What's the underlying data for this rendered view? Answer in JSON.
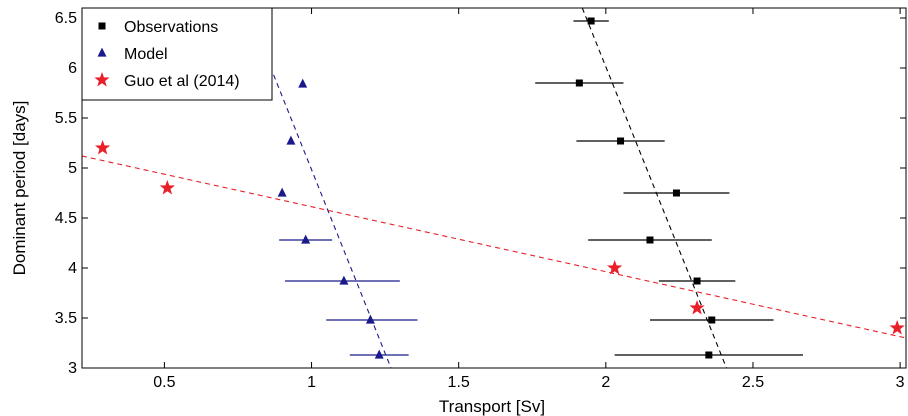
{
  "chart_data": {
    "type": "scatter",
    "xlabel": "Transport [Sv]",
    "ylabel": "Dominant period [days]",
    "xlim": [
      0.22,
      3.02
    ],
    "ylim": [
      3.0,
      6.6
    ],
    "xticks": [
      0.5,
      1,
      1.5,
      2,
      2.5,
      3
    ],
    "xtick_labels": [
      "0.5",
      "1",
      "1.5",
      "2",
      "2.5",
      "3"
    ],
    "yticks": [
      3,
      3.5,
      4,
      4.5,
      5,
      5.5,
      6,
      6.5
    ],
    "ytick_labels": [
      "3",
      "3.5",
      "4",
      "4.5",
      "5",
      "5.5",
      "6",
      "6.5"
    ],
    "grid": false,
    "legend_position": "top-left",
    "series": [
      {
        "name": "Observations",
        "marker": "square",
        "color": "#000000",
        "points": [
          {
            "x": 1.95,
            "y": 6.47,
            "xerr": [
              1.89,
              2.01
            ]
          },
          {
            "x": 1.91,
            "y": 5.85,
            "xerr": [
              1.76,
              2.06
            ]
          },
          {
            "x": 2.05,
            "y": 5.27,
            "xerr": [
              1.9,
              2.2
            ]
          },
          {
            "x": 2.24,
            "y": 4.75,
            "xerr": [
              2.06,
              2.42
            ]
          },
          {
            "x": 2.15,
            "y": 4.28,
            "xerr": [
              1.94,
              2.36
            ]
          },
          {
            "x": 2.31,
            "y": 3.87,
            "xerr": [
              2.18,
              2.44
            ]
          },
          {
            "x": 2.36,
            "y": 3.48,
            "xerr": [
              2.15,
              2.57
            ]
          },
          {
            "x": 2.35,
            "y": 3.13,
            "xerr": [
              2.03,
              2.67
            ]
          }
        ],
        "fit_line": {
          "x1": 1.92,
          "y1": 6.6,
          "x2": 2.41,
          "y2": 3.0,
          "color": "#000000"
        }
      },
      {
        "name": "Model",
        "marker": "triangle",
        "color": "#1a1a8c",
        "points": [
          {
            "x": 0.97,
            "y": 5.84
          },
          {
            "x": 0.93,
            "y": 5.27
          },
          {
            "x": 0.9,
            "y": 4.75
          },
          {
            "x": 0.98,
            "y": 4.28,
            "xerr": [
              0.89,
              1.07
            ]
          },
          {
            "x": 1.11,
            "y": 3.87,
            "xerr": [
              0.91,
              1.3
            ]
          },
          {
            "x": 1.2,
            "y": 3.48,
            "xerr": [
              1.05,
              1.36
            ]
          },
          {
            "x": 1.23,
            "y": 3.13,
            "xerr": [
              1.13,
              1.33
            ]
          }
        ],
        "fit_line": {
          "x1": 0.78,
          "y1": 6.6,
          "x2": 1.27,
          "y2": 3.0,
          "color": "#1a1a8c"
        }
      },
      {
        "name": "Guo et al (2014)",
        "marker": "star",
        "color": "#e8202a",
        "points": [
          {
            "x": 0.29,
            "y": 5.2
          },
          {
            "x": 0.51,
            "y": 4.8
          },
          {
            "x": 2.03,
            "y": 4.0
          },
          {
            "x": 2.31,
            "y": 3.6
          },
          {
            "x": 2.99,
            "y": 3.4
          }
        ],
        "fit_line": {
          "x1": 0.22,
          "y1": 5.12,
          "x2": 3.02,
          "y2": 3.3,
          "color": "#e8202a"
        }
      }
    ]
  }
}
